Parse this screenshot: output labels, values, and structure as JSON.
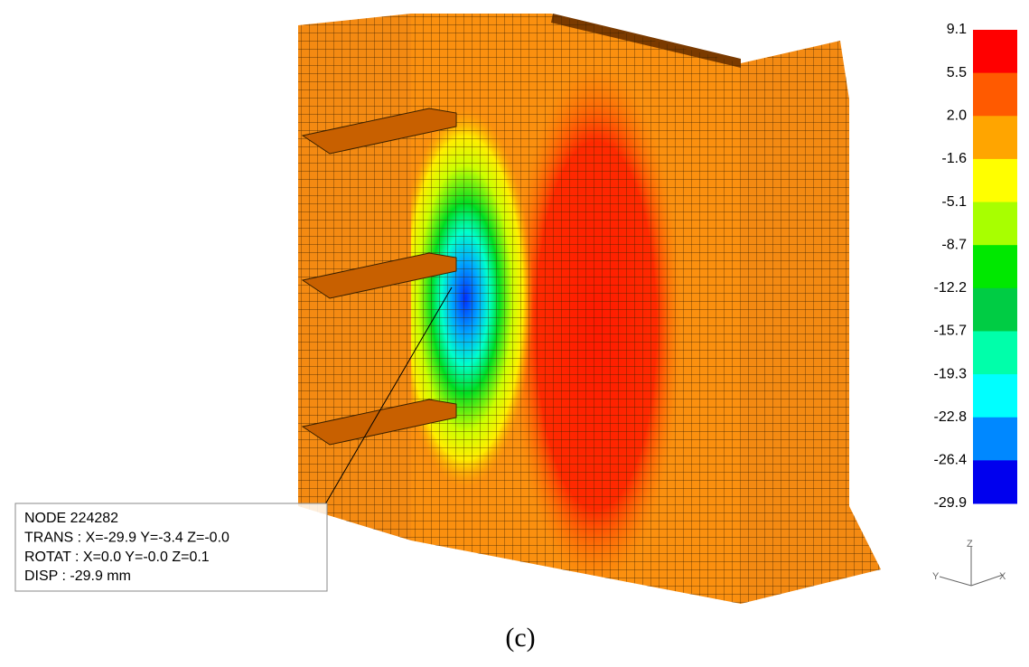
{
  "legend": {
    "labels": [
      "9.1",
      "5.5",
      "2.0",
      "-1.6",
      "-5.1",
      "-8.7",
      "-12.2",
      "-15.7",
      "-19.3",
      "-22.8",
      "-26.4",
      "-29.9"
    ],
    "colors": [
      "#ff0000",
      "#ff5a00",
      "#ffa500",
      "#ffff00",
      "#a8ff00",
      "#00e800",
      "#00cc44",
      "#00ffaa",
      "#00ffff",
      "#0088ff",
      "#0000ee"
    ]
  },
  "annotation": {
    "lines": [
      "NODE 224282",
      "TRANS : X=-29.9  Y=-3.4  Z=-0.0",
      "ROTAT : X=0.0  Y=-0.0  Z=0.1",
      "DISP : -29.9 mm"
    ]
  },
  "triad": {
    "z": "Z",
    "y": "Y",
    "x": "X"
  },
  "caption": "(c)"
}
